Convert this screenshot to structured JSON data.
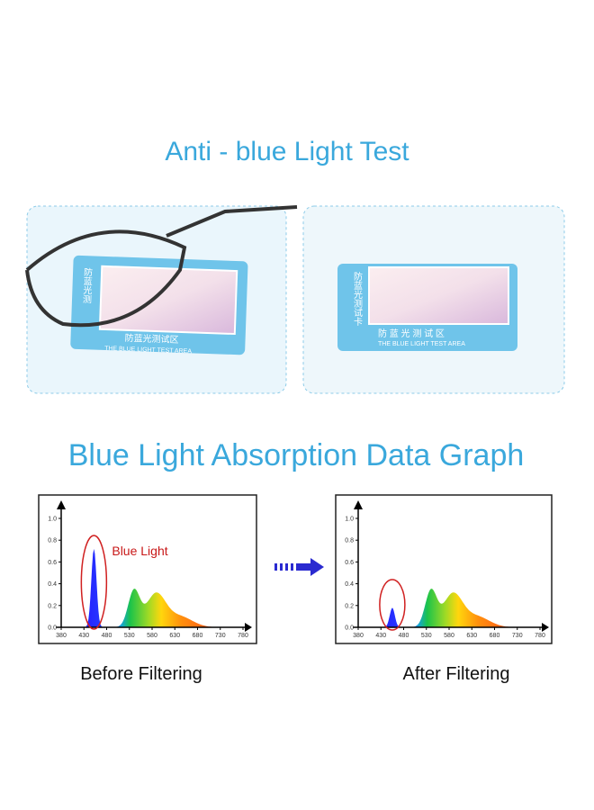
{
  "header": {
    "title": "Anti - blue Light Test"
  },
  "photos": [
    {
      "card_side": "防蓝光测",
      "card_title": "防蓝光测试区",
      "card_caption": "THE BLUE LIGHT TEST AREA"
    },
    {
      "card_side": "防蓝光测试卡",
      "card_title": "防 蓝 光 测 试 区",
      "card_caption": "THE BLUE LIGHT TEST AREA"
    }
  ],
  "section": {
    "title": "Blue Light Absorption Data Graph"
  },
  "graphs": [
    {
      "caption": "Before Filtering",
      "annotation": "Blue Light",
      "yticks": [
        {
          "value": 0,
          "label": "0.0"
        },
        0.2,
        0.4,
        0.6,
        0.8,
        {
          "value": 1,
          "label": "1.0"
        }
      ],
      "xticks": [
        380,
        430,
        480,
        530,
        580,
        630,
        680,
        730,
        780
      ]
    },
    {
      "caption": "After Filtering",
      "yticks": [
        {
          "value": 0,
          "label": "0.0"
        },
        0.2,
        0.4,
        0.6,
        0.8,
        {
          "value": 1,
          "label": "1.0"
        }
      ],
      "xticks": [
        380,
        430,
        480,
        530,
        580,
        630,
        680,
        730,
        780
      ]
    }
  ]
}
